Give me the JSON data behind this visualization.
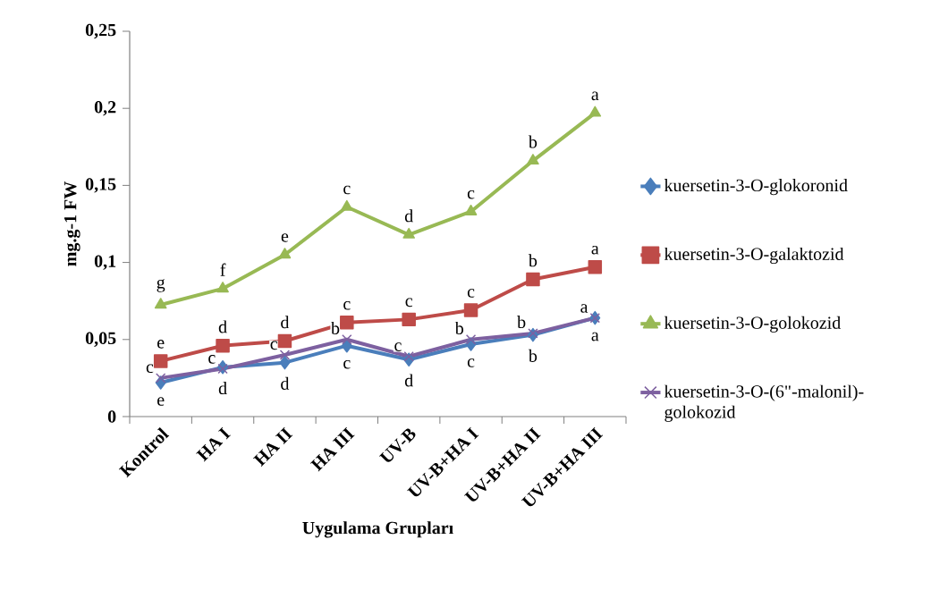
{
  "chart_data": {
    "type": "line",
    "xlabel": "Uygulama Grupları",
    "ylabel": "mg.g-1 FW",
    "categories": [
      "Kontrol",
      "HA I",
      "HA II",
      "HA III",
      "UV-B",
      "UV-B+HA I",
      "UV-B+HA II",
      "UV-B+HA III"
    ],
    "series": [
      {
        "name": "kuersetin-3-O-glokoronid",
        "color": "#4a7ebb",
        "marker": "diamond",
        "values": [
          0.022,
          0.032,
          0.035,
          0.046,
          0.037,
          0.047,
          0.053,
          0.064
        ],
        "value_labels": [
          "e",
          "d",
          "d",
          "c",
          "d",
          "c",
          "b",
          "a"
        ]
      },
      {
        "name": "kuersetin-3-O-galaktozid",
        "color": "#be4b48",
        "marker": "square",
        "values": [
          0.036,
          0.046,
          0.049,
          0.061,
          0.063,
          0.069,
          0.089,
          0.097
        ],
        "value_labels": [
          "e",
          "d",
          "d",
          "c",
          "c",
          "c",
          "b",
          "a"
        ]
      },
      {
        "name": "kuersetin-3-O-golokozid",
        "color": "#98b954",
        "marker": "triangle",
        "values": [
          0.0725,
          0.083,
          0.105,
          0.136,
          0.118,
          0.133,
          0.166,
          0.197
        ],
        "value_labels": [
          "g",
          "f",
          "e",
          "c",
          "d",
          "c",
          "b",
          "a"
        ]
      },
      {
        "name": "kuersetin-3-O-(6\"-malonil)-golokozid",
        "color": "#7d60a0",
        "marker": "cross",
        "values": [
          0.025,
          0.031,
          0.04,
          0.05,
          0.039,
          0.05,
          0.054,
          0.064
        ],
        "value_labels": [
          "c",
          "c",
          "c",
          "b",
          "c",
          "b",
          "b",
          "a"
        ]
      }
    ],
    "ylim": [
      0,
      0.25
    ],
    "yticks": [
      {
        "value": 0,
        "label": "0"
      },
      {
        "value": 0.05,
        "label": "0,05"
      },
      {
        "value": 0.1,
        "label": "0,1"
      },
      {
        "value": 0.15,
        "label": "0,15"
      },
      {
        "value": 0.2,
        "label": "0,2"
      },
      {
        "value": 0.25,
        "label": "0,25"
      }
    ],
    "grid": false,
    "legend": "right",
    "line_style": "solid"
  }
}
